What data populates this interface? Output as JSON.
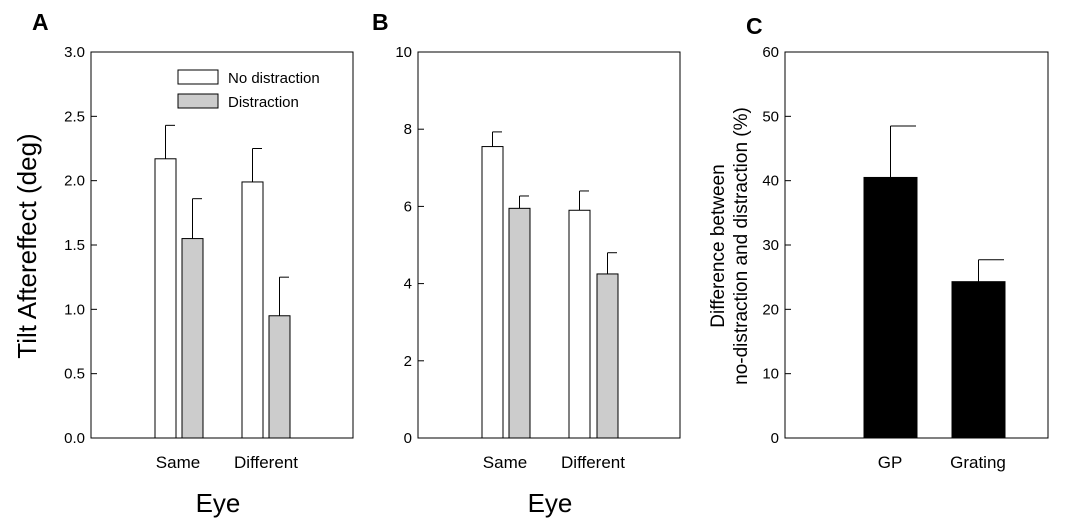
{
  "chart_data": [
    {
      "panel": "A",
      "type": "bar",
      "categories": [
        "Same",
        "Different"
      ],
      "series": [
        {
          "name": "No distraction",
          "values": [
            2.17,
            1.99
          ],
          "errors": [
            0.26,
            0.26
          ],
          "color": "#ffffff"
        },
        {
          "name": "Distraction",
          "values": [
            1.55,
            0.95
          ],
          "errors": [
            0.31,
            0.3
          ],
          "color": "#cccccc"
        }
      ],
      "xlabel": "Eye",
      "ylabel": "Tilt Aftereffect (deg)",
      "ylim": [
        0,
        3.0
      ],
      "yticks": [
        "0.0",
        "0.5",
        "1.0",
        "1.5",
        "2.0",
        "2.5",
        "3.0"
      ],
      "legend": "top-right",
      "grid": false
    },
    {
      "panel": "B",
      "type": "bar",
      "categories": [
        "Same",
        "Different"
      ],
      "series": [
        {
          "name": "No distraction",
          "values": [
            7.55,
            5.9
          ],
          "errors": [
            0.38,
            0.5
          ],
          "color": "#ffffff"
        },
        {
          "name": "Distraction",
          "values": [
            5.95,
            4.25
          ],
          "errors": [
            0.32,
            0.55
          ],
          "color": "#cccccc"
        }
      ],
      "xlabel": "Eye",
      "ylabel": "",
      "ylim": [
        0,
        10
      ],
      "yticks": [
        "0",
        "2",
        "4",
        "6",
        "8",
        "10"
      ],
      "grid": false
    },
    {
      "panel": "C",
      "type": "bar",
      "categories": [
        "GP",
        "Grating"
      ],
      "series": [
        {
          "values": [
            40.5,
            24.3
          ],
          "errors": [
            8.0,
            3.4
          ],
          "color": "#000000"
        }
      ],
      "xlabel": "",
      "ylabel": [
        "Difference between",
        "no-distraction and distraction (%)"
      ],
      "ylim": [
        0,
        60
      ],
      "yticks": [
        "0",
        "10",
        "20",
        "30",
        "40",
        "50",
        "60"
      ],
      "grid": false
    }
  ]
}
